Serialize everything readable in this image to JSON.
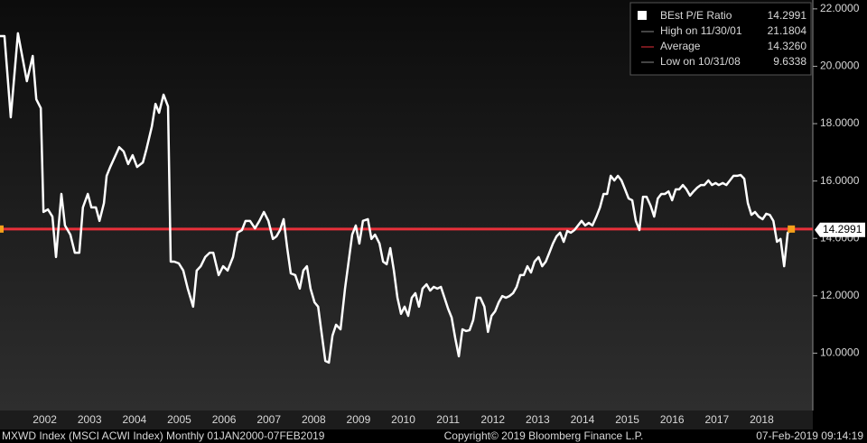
{
  "chart_data": {
    "type": "line",
    "series": [
      {
        "name": "BEst P/E Ratio",
        "color": "#ffffff",
        "axis": "y",
        "values": [
          21.05,
          21.05,
          18.22,
          21.15,
          19.48,
          20.36,
          18.85,
          18.54,
          14.92,
          15.01,
          14.76,
          13.35,
          15.55,
          14.45,
          14.13,
          13.5,
          13.5,
          15.08,
          15.55,
          15.08,
          15.08,
          14.61,
          15.23,
          16.18,
          16.49,
          16.9,
          17.18,
          17.03,
          16.59,
          16.9,
          16.49,
          16.65,
          17.12,
          17.91,
          18.69,
          18.38,
          19.01,
          18.6,
          13.19,
          13.19,
          13.13,
          12.88,
          12.25,
          11.62,
          12.88,
          13.03,
          13.35,
          13.5,
          13.5,
          12.72,
          13.03,
          12.88,
          13.35,
          14.2,
          14.29,
          14.61,
          14.61,
          14.35,
          14.61,
          14.92,
          14.61,
          13.98,
          14.07,
          14.29,
          14.67,
          13.66,
          12.78,
          12.72,
          12.25,
          12.88,
          13.03,
          12.25,
          11.77,
          11.62,
          10.67,
          9.73,
          9.67,
          10.61,
          10.99,
          10.83,
          12.25,
          13.19,
          14.13,
          14.45,
          13.82,
          14.61,
          14.67,
          13.98,
          14.13,
          13.82,
          13.19,
          13.1,
          13.66,
          12.88,
          11.93,
          11.37,
          11.62,
          11.3,
          11.93,
          12.09,
          11.62,
          12.25,
          12.4,
          12.18,
          12.31,
          12.25,
          12.31,
          11.93,
          11.55,
          11.24,
          10.52,
          9.89,
          10.83,
          10.77,
          10.8,
          11.15,
          11.93,
          11.93,
          11.62,
          10.74,
          11.3,
          11.46,
          11.77,
          11.99,
          11.93,
          11.99,
          12.09,
          12.31,
          12.72,
          12.72,
          13.03,
          12.81,
          13.19,
          13.35,
          13.03,
          13.19,
          13.5,
          13.82,
          14.07,
          14.2,
          13.88,
          14.26,
          14.2,
          14.29,
          14.45,
          14.61,
          14.45,
          14.54,
          14.45,
          14.76,
          15.08,
          15.55,
          15.55,
          16.18,
          16.02,
          16.18,
          16.02,
          15.71,
          15.39,
          15.33,
          14.61,
          14.29,
          15.45,
          15.45,
          15.14,
          14.76,
          15.39,
          15.55,
          15.55,
          15.64,
          15.33,
          15.71,
          15.71,
          15.86,
          15.71,
          15.49,
          15.64,
          15.77,
          15.86,
          15.86,
          16.02,
          15.86,
          15.93,
          15.86,
          15.93,
          15.86,
          16.02,
          16.18,
          16.18,
          16.21,
          16.08,
          15.23,
          14.82,
          14.92,
          14.76,
          14.67,
          14.86,
          14.82,
          14.61,
          13.88,
          13.98,
          13.03,
          14.2,
          14.2991
        ]
      }
    ],
    "x": [
      2001.5,
      2001.6,
      2001.74,
      2001.9,
      2002.1,
      2002.23,
      2002.31,
      2002.41,
      2002.47,
      2002.57,
      2002.67,
      2002.75,
      2002.87,
      2002.95,
      2003.07,
      2003.17,
      2003.27,
      2003.35,
      2003.46,
      2003.54,
      2003.64,
      2003.72,
      2003.82,
      2003.88,
      2003.96,
      2004.08,
      2004.16,
      2004.26,
      2004.36,
      2004.46,
      2004.56,
      2004.69,
      2004.77,
      2004.89,
      2004.97,
      2005.05,
      2005.15,
      2005.25,
      2005.31,
      2005.39,
      2005.49,
      2005.59,
      2005.69,
      2005.81,
      2005.89,
      2005.98,
      2006.08,
      2006.18,
      2006.26,
      2006.38,
      2006.48,
      2006.58,
      2006.7,
      2006.8,
      2006.9,
      2006.98,
      2007.08,
      2007.19,
      2007.29,
      2007.39,
      2007.49,
      2007.59,
      2007.67,
      2007.75,
      2007.83,
      2007.91,
      2007.99,
      2008.09,
      2008.19,
      2008.27,
      2008.35,
      2008.43,
      2008.52,
      2008.6,
      2008.68,
      2008.76,
      2008.84,
      2008.92,
      2009.0,
      2009.1,
      2009.2,
      2009.28,
      2009.36,
      2009.44,
      2009.52,
      2009.6,
      2009.71,
      2009.79,
      2009.87,
      2009.97,
      2010.05,
      2010.13,
      2010.21,
      2010.29,
      2010.37,
      2010.45,
      2010.53,
      2010.61,
      2010.69,
      2010.77,
      2010.85,
      2010.93,
      2011.02,
      2011.1,
      2011.18,
      2011.26,
      2011.34,
      2011.42,
      2011.5,
      2011.58,
      2011.66,
      2011.74,
      2011.82,
      2011.9,
      2011.98,
      2012.06,
      2012.14,
      2012.22,
      2012.31,
      2012.39,
      2012.47,
      2012.55,
      2012.63,
      2012.71,
      2012.79,
      2012.87,
      2012.95,
      2013.03,
      2013.11,
      2013.19,
      2013.27,
      2013.35,
      2013.43,
      2013.52,
      2013.6,
      2013.68,
      2013.76,
      2013.84,
      2013.92,
      2014.0,
      2014.08,
      2014.16,
      2014.24,
      2014.32,
      2014.4,
      2014.48,
      2014.56,
      2014.64,
      2014.72,
      2014.81,
      2014.89,
      2014.97,
      2015.05,
      2015.13,
      2015.21,
      2015.29,
      2015.37,
      2015.45,
      2015.53,
      2015.61,
      2015.69,
      2015.77,
      2015.85,
      2015.93,
      2016.02,
      2016.1,
      2016.18,
      2016.26,
      2016.34,
      2016.42,
      2016.5,
      2016.58,
      2016.66,
      2016.74,
      2016.82,
      2016.9,
      2016.98,
      2017.06,
      2017.14,
      2017.22,
      2017.31,
      2017.39,
      2017.47,
      2017.54,
      2017.63,
      2017.71,
      2017.79,
      2017.87,
      2017.95,
      2018.03,
      2018.11,
      2018.19,
      2018.27,
      2018.35,
      2018.43,
      2018.52,
      2018.6,
      2018.68,
      2018.76,
      2018.84,
      2018.92,
      2019.0,
      2019.08,
      2019.16
    ],
    "xlim": [
      2001.5,
      2019.64
    ],
    "xticks": [
      {
        "value": 2002.5,
        "label": "2002"
      },
      {
        "value": 2003.5,
        "label": "2003"
      },
      {
        "value": 2004.5,
        "label": "2004"
      },
      {
        "value": 2005.5,
        "label": "2005"
      },
      {
        "value": 2006.5,
        "label": "2006"
      },
      {
        "value": 2007.5,
        "label": "2007"
      },
      {
        "value": 2008.5,
        "label": "2008"
      },
      {
        "value": 2009.5,
        "label": "2009"
      },
      {
        "value": 2010.5,
        "label": "2010"
      },
      {
        "value": 2011.5,
        "label": "2011"
      },
      {
        "value": 2012.5,
        "label": "2012"
      },
      {
        "value": 2013.5,
        "label": "2013"
      },
      {
        "value": 2014.5,
        "label": "2014"
      },
      {
        "value": 2015.5,
        "label": "2015"
      },
      {
        "value": 2016.5,
        "label": "2016"
      },
      {
        "value": 2017.5,
        "label": "2017"
      },
      {
        "value": 2018.5,
        "label": "2018"
      }
    ],
    "ylim": [
      8,
      22.31
    ],
    "yticks": [
      {
        "value": 10,
        "label": "10.0000"
      },
      {
        "value": 12,
        "label": "12.0000"
      },
      {
        "value": 14,
        "label": "14.0000"
      },
      {
        "value": 16,
        "label": "16.0000"
      },
      {
        "value": 18,
        "label": "18.0000"
      },
      {
        "value": 20,
        "label": "20.0000"
      },
      {
        "value": 22,
        "label": "22.0000"
      }
    ],
    "legend_stats": [
      {
        "label": "High on 11/30/01",
        "value": 21.1804
      },
      {
        "label": "Average",
        "value": 14.326,
        "value_label": "14.3260",
        "color": "#e8303a"
      },
      {
        "label": "Low on 10/31/08",
        "value": 9.6338
      }
    ],
    "footer": [
      "MXWD Index (MSCI ACWI Index)  Monthly 01JAN2000-07FEB2019",
      "Copyright© 2019 Bloomberg Finance L.P.",
      "07-Feb-2019 09:14:19"
    ]
  }
}
